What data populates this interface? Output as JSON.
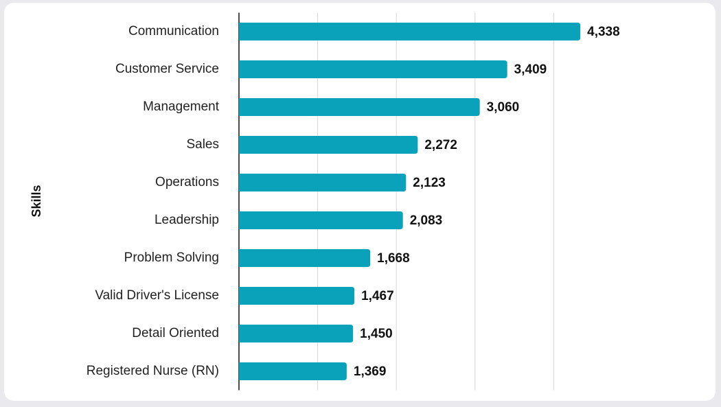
{
  "chart_data": {
    "type": "barh",
    "y_axis_label": "Skills",
    "categories": [
      "Communication",
      "Customer Service",
      "Management",
      "Sales",
      "Operations",
      "Leadership",
      "Problem Solving",
      "Valid Driver's License",
      "Detail Oriented",
      "Registered Nurse (RN)"
    ],
    "values": [
      4338,
      3409,
      3060,
      2272,
      2123,
      2083,
      1668,
      1467,
      1450,
      1369
    ],
    "value_labels": [
      "4,338",
      "3,409",
      "3,060",
      "2,272",
      "2,123",
      "2,083",
      "1,668",
      "1,467",
      "1,450",
      "1,369"
    ],
    "color": "#0aa1ba",
    "xlim": [
      0,
      5000
    ],
    "xticks": [
      0,
      1000,
      2000,
      3000,
      4000
    ],
    "grid": true
  }
}
